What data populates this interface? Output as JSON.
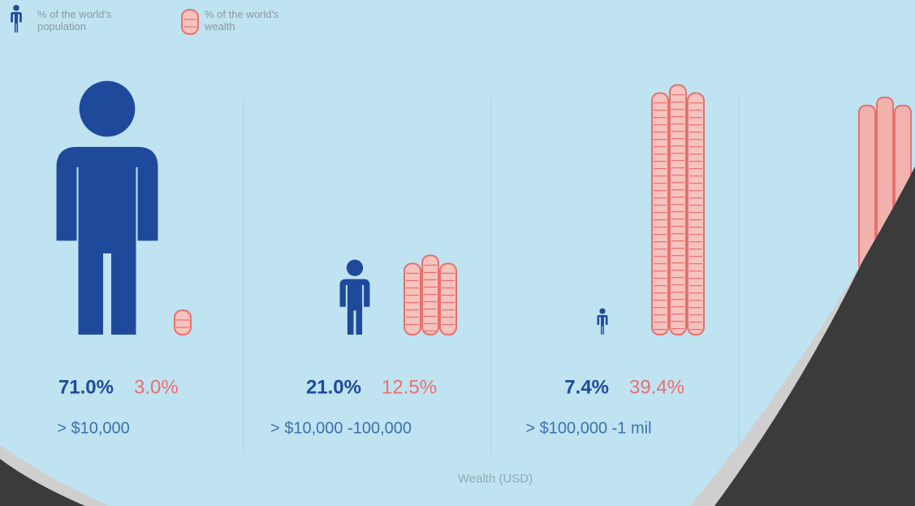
{
  "chart_data": {
    "type": "pictograph",
    "categories": [
      "> $10,000",
      "> $10,000 -100,000",
      "> $100,000 -1 mil"
    ],
    "series": [
      {
        "name": "% of the world's population",
        "color": "#1f4a9c",
        "values": [
          71.0,
          21.0,
          7.4
        ],
        "value_labels": [
          "71.0%",
          "21.0%",
          "7.4%"
        ]
      },
      {
        "name": "% of the world's wealth",
        "color": "#e8706e",
        "values": [
          3.0,
          12.5,
          39.4
        ],
        "value_labels": [
          "3.0%",
          "12.5%",
          "39.4%"
        ]
      }
    ],
    "x_label": "Wealth (USD)"
  }
}
